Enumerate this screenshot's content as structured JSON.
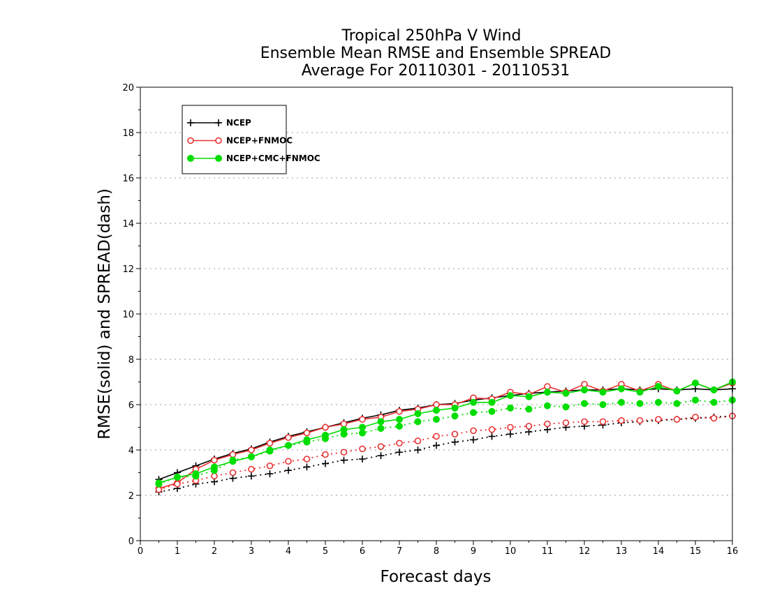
{
  "chart_data": {
    "type": "line",
    "title": [
      "Tropical 250hPa V Wind",
      "Ensemble Mean RMSE and Ensemble SPREAD",
      "Average For 20110301 - 20110531"
    ],
    "xlabel": "Forecast days",
    "ylabel": "RMSE(solid) and SPREAD(dash)",
    "xlim": [
      0,
      16
    ],
    "ylim": [
      0,
      20
    ],
    "xticks": [
      "0",
      "1",
      "2",
      "3",
      "4",
      "5",
      "6",
      "7",
      "8",
      "9",
      "10",
      "11",
      "12",
      "13",
      "14",
      "15",
      "16"
    ],
    "yticks": [
      "0",
      "2",
      "4",
      "6",
      "8",
      "10",
      "12",
      "14",
      "16",
      "18",
      "20"
    ],
    "grid": "horizontal dotted",
    "legend_position": "top-left",
    "legend": [
      "NCEP",
      "NCEP+FNMOC",
      "NCEP+CMC+FNMOC"
    ],
    "x": [
      0.5,
      1,
      1.5,
      2,
      2.5,
      3,
      3.5,
      4,
      4.5,
      5,
      5.5,
      6,
      6.5,
      7,
      7.5,
      8,
      8.5,
      9,
      9.5,
      10,
      10.5,
      11,
      11.5,
      12,
      12.5,
      13,
      13.5,
      14,
      14.5,
      15,
      15.5,
      16
    ],
    "series": [
      {
        "name": "NCEP",
        "kind": "RMSE",
        "style": "solid",
        "marker": "plus",
        "color": "#000000",
        "values": [
          2.7,
          3.0,
          3.3,
          3.6,
          3.85,
          4.05,
          4.35,
          4.6,
          4.8,
          5.0,
          5.2,
          5.4,
          5.55,
          5.75,
          5.85,
          6.0,
          6.05,
          6.2,
          6.3,
          6.4,
          6.5,
          6.55,
          6.6,
          6.65,
          6.65,
          6.7,
          6.65,
          6.7,
          6.65,
          6.7,
          6.65,
          6.7
        ]
      },
      {
        "name": "NCEP+FNMOC",
        "kind": "RMSE",
        "style": "solid",
        "marker": "open-circle",
        "color": "#e83030",
        "values": [
          2.3,
          2.55,
          3.15,
          3.55,
          3.8,
          4.0,
          4.3,
          4.55,
          4.75,
          5.0,
          5.15,
          5.35,
          5.45,
          5.7,
          5.8,
          6.0,
          6.0,
          6.3,
          6.25,
          6.55,
          6.45,
          6.8,
          6.55,
          6.9,
          6.6,
          6.9,
          6.6,
          6.9,
          6.6,
          6.95,
          6.65,
          6.95
        ]
      },
      {
        "name": "NCEP+CMC+FNMOC",
        "kind": "RMSE",
        "style": "solid",
        "marker": "filled-circle",
        "color": "#00dd00",
        "values": [
          2.55,
          2.8,
          2.95,
          3.25,
          3.5,
          3.7,
          4.0,
          4.2,
          4.45,
          4.65,
          4.9,
          5.0,
          5.25,
          5.35,
          5.6,
          5.75,
          5.85,
          6.1,
          6.1,
          6.4,
          6.35,
          6.55,
          6.5,
          6.65,
          6.55,
          6.7,
          6.55,
          6.8,
          6.6,
          6.95,
          6.65,
          7.0
        ]
      },
      {
        "name": "NCEP",
        "kind": "SPREAD",
        "style": "dash",
        "marker": "plus",
        "color": "#000000",
        "values": [
          2.15,
          2.3,
          2.5,
          2.6,
          2.75,
          2.85,
          2.95,
          3.1,
          3.25,
          3.4,
          3.55,
          3.6,
          3.75,
          3.9,
          4.0,
          4.2,
          4.35,
          4.45,
          4.6,
          4.7,
          4.8,
          4.9,
          5.0,
          5.05,
          5.1,
          5.2,
          5.25,
          5.3,
          5.35,
          5.4,
          5.45,
          5.5
        ]
      },
      {
        "name": "NCEP+FNMOC",
        "kind": "SPREAD",
        "style": "dash",
        "marker": "open-circle",
        "color": "#e83030",
        "values": [
          2.25,
          2.5,
          2.65,
          2.85,
          3.0,
          3.15,
          3.3,
          3.5,
          3.6,
          3.8,
          3.9,
          4.05,
          4.15,
          4.3,
          4.4,
          4.6,
          4.7,
          4.85,
          4.9,
          5.0,
          5.05,
          5.15,
          5.2,
          5.25,
          5.25,
          5.3,
          5.3,
          5.35,
          5.35,
          5.45,
          5.4,
          5.5
        ]
      },
      {
        "name": "NCEP+CMC+FNMOC",
        "kind": "SPREAD",
        "style": "dash",
        "marker": "filled-circle",
        "color": "#00dd00",
        "values": [
          2.5,
          2.8,
          2.85,
          3.1,
          3.55,
          3.7,
          3.95,
          4.2,
          4.35,
          4.5,
          4.7,
          4.75,
          4.95,
          5.05,
          5.25,
          5.35,
          5.5,
          5.65,
          5.7,
          5.85,
          5.8,
          5.95,
          5.9,
          6.05,
          6.0,
          6.1,
          6.05,
          6.1,
          6.05,
          6.2,
          6.1,
          6.2
        ]
      }
    ]
  }
}
